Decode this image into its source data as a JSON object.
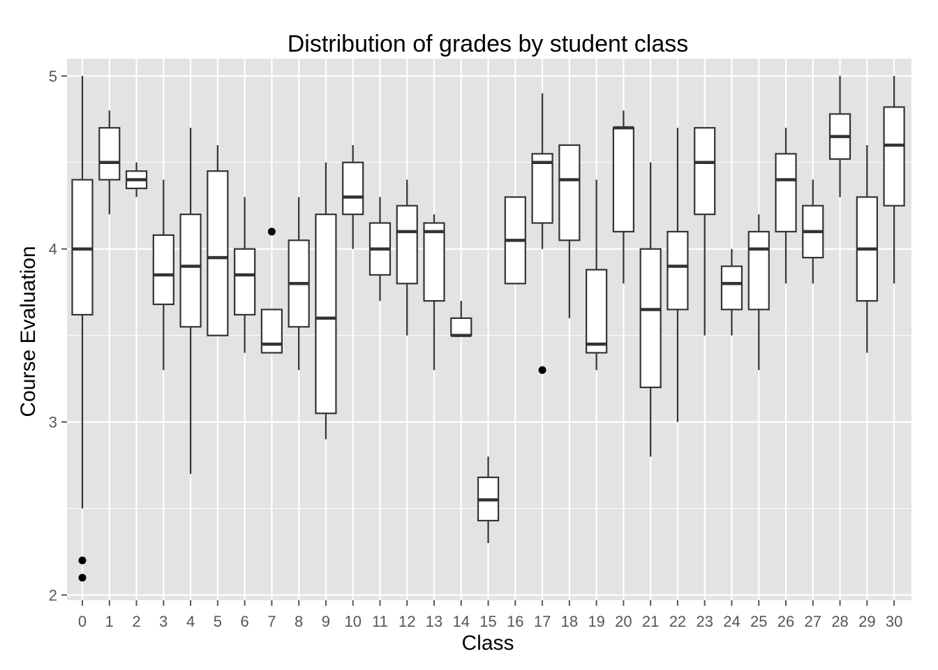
{
  "chart_data": {
    "type": "boxplot",
    "title": "Distribution of grades by student class",
    "xlabel": "Class",
    "ylabel": "Course Evaluation",
    "categories": [
      "0",
      "1",
      "2",
      "3",
      "4",
      "5",
      "6",
      "7",
      "8",
      "9",
      "10",
      "11",
      "12",
      "13",
      "14",
      "15",
      "16",
      "17",
      "18",
      "19",
      "20",
      "21",
      "22",
      "23",
      "24",
      "25",
      "26",
      "27",
      "28",
      "29",
      "30"
    ],
    "ylim": [
      1.97,
      5.1
    ],
    "y_ticks": [
      2,
      3,
      4,
      5
    ],
    "y_tick_labels": [
      "2",
      "3",
      "4",
      "5"
    ],
    "grid": true,
    "panel_background": "#e3e3e3",
    "grid_color": "#ffffff",
    "box_fill": "#ffffff",
    "box_stroke": "#333333",
    "boxes": [
      {
        "class": "0",
        "whisker_low": 2.5,
        "q1": 3.62,
        "median": 4.0,
        "q3": 4.4,
        "whisker_high": 5.0,
        "outliers": [
          2.2,
          2.1
        ]
      },
      {
        "class": "1",
        "whisker_low": 4.2,
        "q1": 4.4,
        "median": 4.5,
        "q3": 4.7,
        "whisker_high": 4.8,
        "outliers": []
      },
      {
        "class": "2",
        "whisker_low": 4.3,
        "q1": 4.35,
        "median": 4.4,
        "q3": 4.45,
        "whisker_high": 4.5,
        "outliers": []
      },
      {
        "class": "3",
        "whisker_low": 3.3,
        "q1": 3.68,
        "median": 3.85,
        "q3": 4.08,
        "whisker_high": 4.4,
        "outliers": []
      },
      {
        "class": "4",
        "whisker_low": 2.7,
        "q1": 3.55,
        "median": 3.9,
        "q3": 4.2,
        "whisker_high": 4.7,
        "outliers": []
      },
      {
        "class": "5",
        "whisker_low": 3.5,
        "q1": 3.5,
        "median": 3.95,
        "q3": 4.45,
        "whisker_high": 4.6,
        "outliers": []
      },
      {
        "class": "6",
        "whisker_low": 3.4,
        "q1": 3.62,
        "median": 3.85,
        "q3": 4.0,
        "whisker_high": 4.3,
        "outliers": []
      },
      {
        "class": "7",
        "whisker_low": 3.4,
        "q1": 3.4,
        "median": 3.45,
        "q3": 3.65,
        "whisker_high": 3.65,
        "outliers": [
          4.1
        ]
      },
      {
        "class": "8",
        "whisker_low": 3.3,
        "q1": 3.55,
        "median": 3.8,
        "q3": 4.05,
        "whisker_high": 4.3,
        "outliers": []
      },
      {
        "class": "9",
        "whisker_low": 2.9,
        "q1": 3.05,
        "median": 3.6,
        "q3": 4.2,
        "whisker_high": 4.5,
        "outliers": []
      },
      {
        "class": "10",
        "whisker_low": 4.0,
        "q1": 4.2,
        "median": 4.3,
        "q3": 4.5,
        "whisker_high": 4.6,
        "outliers": []
      },
      {
        "class": "11",
        "whisker_low": 3.7,
        "q1": 3.85,
        "median": 4.0,
        "q3": 4.15,
        "whisker_high": 4.3,
        "outliers": []
      },
      {
        "class": "12",
        "whisker_low": 3.5,
        "q1": 3.8,
        "median": 4.1,
        "q3": 4.25,
        "whisker_high": 4.4,
        "outliers": []
      },
      {
        "class": "13",
        "whisker_low": 3.3,
        "q1": 3.7,
        "median": 4.1,
        "q3": 4.15,
        "whisker_high": 4.2,
        "outliers": []
      },
      {
        "class": "14",
        "whisker_low": 3.5,
        "q1": 3.5,
        "median": 3.5,
        "q3": 3.6,
        "whisker_high": 3.7,
        "outliers": []
      },
      {
        "class": "15",
        "whisker_low": 2.3,
        "q1": 2.43,
        "median": 2.55,
        "q3": 2.68,
        "whisker_high": 2.8,
        "outliers": []
      },
      {
        "class": "16",
        "whisker_low": 3.8,
        "q1": 3.8,
        "median": 4.05,
        "q3": 4.3,
        "whisker_high": 4.3,
        "outliers": []
      },
      {
        "class": "17",
        "whisker_low": 4.0,
        "q1": 4.15,
        "median": 4.5,
        "q3": 4.55,
        "whisker_high": 4.9,
        "outliers": [
          3.3
        ]
      },
      {
        "class": "18",
        "whisker_low": 3.6,
        "q1": 4.05,
        "median": 4.4,
        "q3": 4.6,
        "whisker_high": 4.6,
        "outliers": []
      },
      {
        "class": "19",
        "whisker_low": 3.3,
        "q1": 3.4,
        "median": 3.45,
        "q3": 3.88,
        "whisker_high": 4.4,
        "outliers": []
      },
      {
        "class": "20",
        "whisker_low": 3.8,
        "q1": 4.1,
        "median": 4.7,
        "q3": 4.7,
        "whisker_high": 4.8,
        "outliers": []
      },
      {
        "class": "21",
        "whisker_low": 2.8,
        "q1": 3.2,
        "median": 3.65,
        "q3": 4.0,
        "whisker_high": 4.5,
        "outliers": []
      },
      {
        "class": "22",
        "whisker_low": 3.0,
        "q1": 3.65,
        "median": 3.9,
        "q3": 4.1,
        "whisker_high": 4.7,
        "outliers": []
      },
      {
        "class": "23",
        "whisker_low": 3.5,
        "q1": 4.2,
        "median": 4.5,
        "q3": 4.7,
        "whisker_high": 4.7,
        "outliers": []
      },
      {
        "class": "24",
        "whisker_low": 3.5,
        "q1": 3.65,
        "median": 3.8,
        "q3": 3.9,
        "whisker_high": 4.0,
        "outliers": []
      },
      {
        "class": "25",
        "whisker_low": 3.3,
        "q1": 3.65,
        "median": 4.0,
        "q3": 4.1,
        "whisker_high": 4.2,
        "outliers": []
      },
      {
        "class": "26",
        "whisker_low": 3.8,
        "q1": 4.1,
        "median": 4.4,
        "q3": 4.55,
        "whisker_high": 4.7,
        "outliers": []
      },
      {
        "class": "27",
        "whisker_low": 3.8,
        "q1": 3.95,
        "median": 4.1,
        "q3": 4.25,
        "whisker_high": 4.4,
        "outliers": []
      },
      {
        "class": "28",
        "whisker_low": 4.3,
        "q1": 4.52,
        "median": 4.65,
        "q3": 4.78,
        "whisker_high": 5.0,
        "outliers": []
      },
      {
        "class": "29",
        "whisker_low": 3.4,
        "q1": 3.7,
        "median": 4.0,
        "q3": 4.3,
        "whisker_high": 4.6,
        "outliers": []
      },
      {
        "class": "30",
        "whisker_low": 3.8,
        "q1": 4.25,
        "median": 4.6,
        "q3": 4.82,
        "whisker_high": 5.0,
        "outliers": []
      }
    ]
  }
}
